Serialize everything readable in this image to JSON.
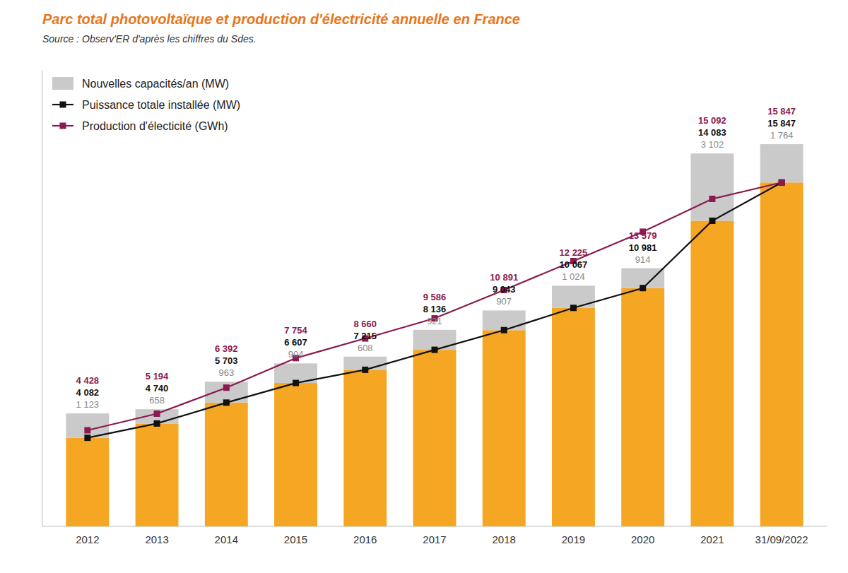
{
  "chart_data": {
    "type": "bar",
    "stacked": true,
    "title": "Parc total photovoltaïque et production d'électricité annuelle en France",
    "subtitle": "Source : Observ'ER d'après les chiffres du Sdes.",
    "categories": [
      "2012",
      "2013",
      "2014",
      "2015",
      "2016",
      "2017",
      "2018",
      "2019",
      "2020",
      "2021",
      "31/09/2022"
    ],
    "series": [
      {
        "type": "bar",
        "color": "#F5A623",
        "values": [
          4082,
          4740,
          5703,
          6607,
          7215,
          8136,
          9043,
          10067,
          10981,
          14083,
          15847
        ]
      },
      {
        "name": "Nouvelles capacités/an (MW)",
        "type": "bar",
        "color": "#CACACA",
        "values": [
          1123,
          658,
          963,
          904,
          608,
          921,
          907,
          1024,
          914,
          3102,
          1764
        ],
        "value_labels": [
          "1 123",
          "658",
          "963",
          "904",
          "608",
          "921",
          "907",
          "1 024",
          "914",
          "3 102",
          "1 764"
        ]
      },
      {
        "name": "Puissance totale installée (MW)",
        "type": "line",
        "color": "#111111",
        "marker": "square",
        "values": [
          4082,
          4740,
          5703,
          6607,
          7215,
          8136,
          9043,
          10067,
          10981,
          14083,
          15847
        ],
        "value_labels": [
          "4 082",
          "4 740",
          "5 703",
          "6 607",
          "7 215",
          "8 136",
          "9 043",
          "10 067",
          "10 981",
          "14 083",
          "15 847"
        ]
      },
      {
        "name": "Production d'électicité (GWh)",
        "type": "line",
        "color": "#8B1A50",
        "marker": "square",
        "values": [
          4428,
          5194,
          6392,
          7754,
          8660,
          9586,
          10891,
          12225,
          13579,
          15092,
          15847
        ],
        "value_labels": [
          "4 428",
          "5 194",
          "6 392",
          "7 754",
          "8 660",
          "9 586",
          "10 891",
          "12 225",
          "13 579",
          "15 092",
          "15 847"
        ]
      }
    ],
    "ylim": [
      0,
      21000
    ],
    "grid": false,
    "legend": "upper left",
    "data_labels": true,
    "tick_labels": "x"
  }
}
